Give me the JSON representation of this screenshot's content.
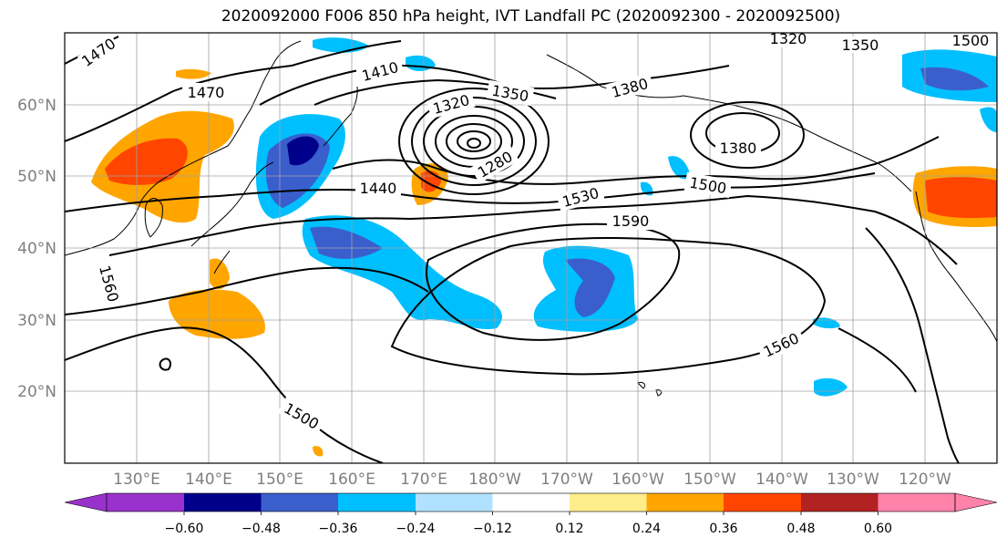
{
  "title": "2020092000 F006 850 hPa height, IVT Landfall PC (2020092300 - 2020092500)",
  "lat_labels": [
    "60°N",
    "50°N",
    "40°N",
    "30°N",
    "20°N"
  ],
  "lon_labels": [
    "130°E",
    "140°E",
    "150°E",
    "160°E",
    "170°E",
    "180°W",
    "170°W",
    "160°W",
    "150°W",
    "140°W",
    "130°W",
    "120°W"
  ],
  "contour_labels": [
    "1470",
    "1470",
    "1410",
    "1350",
    "1320",
    "1380",
    "1320",
    "1350",
    "1380",
    "1280",
    "1440",
    "1530",
    "1500",
    "1590",
    "1560",
    "1500",
    "1560",
    "1500"
  ],
  "colorbar": {
    "ticks": [
      "−0.60",
      "−0.48",
      "−0.36",
      "−0.24",
      "−0.12",
      "0.12",
      "0.24",
      "0.36",
      "0.48",
      "0.60"
    ],
    "colors": [
      "#9932cc",
      "#00008b",
      "#3a5fcd",
      "#00bfff",
      "#b0e2ff",
      "#ffffff",
      "#ffec8b",
      "#ffa500",
      "#ff4500",
      "#b22222",
      "#ff82ab"
    ]
  }
}
